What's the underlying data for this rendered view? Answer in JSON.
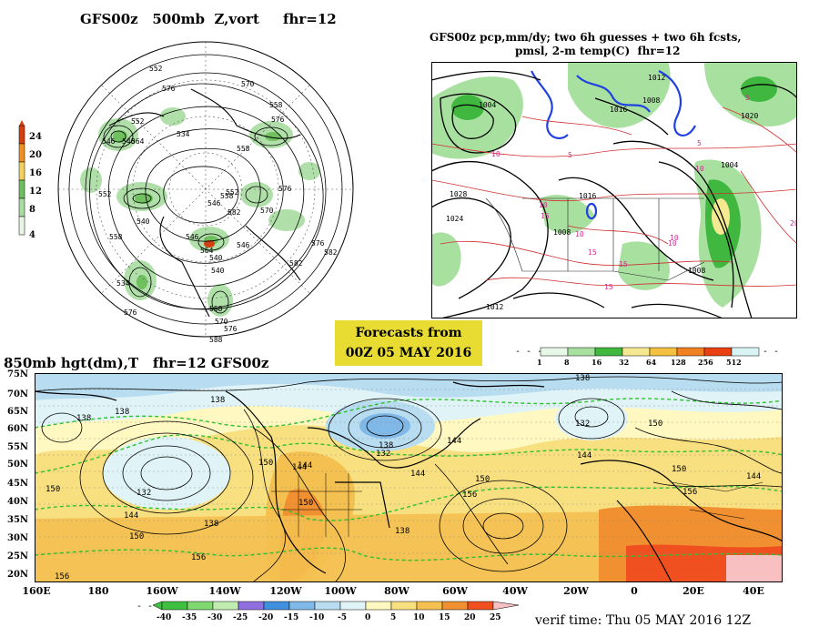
{
  "banner": {
    "line1": "Forecasts from",
    "line2": "00Z 05 MAY 2016"
  },
  "polar_panel": {
    "title": "GFS00z   500mb  Z,vort     fhr=12",
    "colorbar_ticks": [
      "24",
      "20",
      "16",
      "12",
      "8",
      "4"
    ],
    "colors": [
      "#d44010",
      "#f09020",
      "#f4d060",
      "#70c060",
      "#a8dca0",
      "#e8f6e4"
    ],
    "contour_labels": [
      "552",
      "576",
      "570",
      "558",
      "534",
      "552",
      "564",
      "558",
      "546",
      "540",
      "576",
      "552",
      "558",
      "576",
      "570",
      "540",
      "546",
      "552",
      "582",
      "564",
      "546",
      "534",
      "558",
      "540",
      "546",
      "576",
      "540",
      "582",
      "576",
      "582",
      "558",
      "570",
      "576",
      "588"
    ]
  },
  "precip_panel": {
    "title_line1": "GFS00z pcp,mm/dy; two 6h guesses + two 6h fcsts,",
    "title_line2": "pmsl, 2-m temp(C)  fhr=12",
    "colorbar_ticks": [
      "1",
      "8",
      "16",
      "32",
      "64",
      "128",
      "256",
      "512"
    ],
    "colors": [
      "#e8f8e8",
      "#a8e0a0",
      "#40b840",
      "#f4e890",
      "#f4c040",
      "#f08020",
      "#e84010",
      "#d8f4f4"
    ],
    "pressure_labels": [
      "1004",
      "1008",
      "1012",
      "1016",
      "1020",
      "1024",
      "1028",
      "1012",
      "1008",
      "1004",
      "1016",
      "1008"
    ],
    "temp_labels": [
      "10",
      "15",
      "10",
      "5",
      "10",
      "15",
      "10",
      "15",
      "20",
      "5",
      "10",
      "5",
      "10",
      "15"
    ]
  },
  "main_panel": {
    "title": "850mb hgt(dm),T   fhr=12 GFS00z",
    "lat_labels": [
      "75N",
      "70N",
      "65N",
      "60N",
      "55N",
      "50N",
      "45N",
      "40N",
      "35N",
      "30N",
      "25N",
      "20N"
    ],
    "lon_labels": [
      "160E",
      "180",
      "160W",
      "140W",
      "120W",
      "100W",
      "80W",
      "60W",
      "40W",
      "20W",
      "0",
      "20E",
      "40E"
    ],
    "height_labels": [
      "138",
      "138",
      "138",
      "132",
      "144",
      "150",
      "156",
      "156",
      "150",
      "144",
      "138",
      "132",
      "138",
      "144",
      "150",
      "156",
      "144",
      "150",
      "132",
      "138",
      "144",
      "150",
      "144",
      "150",
      "156",
      "144",
      "150",
      "138"
    ],
    "colorbar_ticks": [
      "-40",
      "-35",
      "-30",
      "-25",
      "-20",
      "-15",
      "-10",
      "-5",
      "0",
      "5",
      "10",
      "15",
      "20",
      "25"
    ],
    "colors": [
      "#40c040",
      "#80d870",
      "#c0ecb0",
      "#9070e0",
      "#4090e0",
      "#80b8e8",
      "#b8dcf0",
      "#e0f4f8",
      "#fff8c0",
      "#f8e080",
      "#f4c050",
      "#f09030",
      "#f05020",
      "#f8c0c0"
    ]
  },
  "verif_time": "verif time: Thu 05 MAY 2016 12Z"
}
